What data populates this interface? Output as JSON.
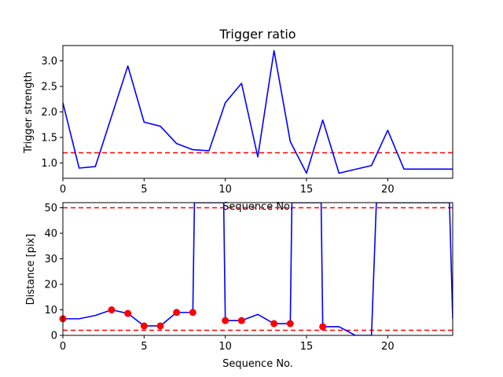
{
  "chart_data": [
    {
      "type": "line",
      "title": "Trigger ratio",
      "xlabel": "Sequence No.",
      "ylabel": "Trigger strength",
      "xlim": [
        0,
        24
      ],
      "ylim": [
        0.7,
        3.3
      ],
      "xticks": [
        0,
        5,
        10,
        15,
        20
      ],
      "yticks": [
        1.0,
        1.5,
        2.0,
        2.5,
        3.0
      ],
      "grid": false,
      "series": [
        {
          "style": "line",
          "color": "#0000ff",
          "x": [
            0,
            1,
            2,
            4,
            5,
            6,
            7,
            8,
            9,
            10,
            11,
            12,
            13,
            14,
            15,
            16,
            17,
            19,
            20,
            21,
            24
          ],
          "y": [
            2.18,
            0.9,
            0.93,
            2.9,
            1.8,
            1.72,
            1.38,
            1.26,
            1.24,
            2.18,
            2.56,
            1.12,
            3.2,
            1.42,
            0.8,
            1.84,
            0.8,
            0.95,
            1.64,
            0.88,
            0.88
          ]
        }
      ],
      "hlines": [
        {
          "y": 1.2,
          "color": "#ff0000",
          "style": "dashed"
        }
      ]
    },
    {
      "type": "line",
      "title": "",
      "xlabel": "Sequence No.",
      "ylabel": "Distance [pix]",
      "xlim": [
        0,
        24
      ],
      "ylim": [
        0,
        52
      ],
      "xticks": [
        0,
        5,
        10,
        15,
        20
      ],
      "yticks": [
        0,
        10,
        20,
        30,
        40,
        50
      ],
      "grid": false,
      "series": [
        {
          "style": "line",
          "color": "#0000ff",
          "x": [
            0,
            1,
            2,
            3,
            4,
            5,
            6,
            7,
            8,
            8.1,
            9.9,
            10,
            11,
            12,
            13,
            14,
            14.1,
            15.9,
            16,
            17,
            18,
            19,
            19.3,
            23.8,
            24
          ],
          "y": [
            6.5,
            6.5,
            7.8,
            10,
            8.6,
            3.7,
            3.7,
            9,
            9,
            52,
            52,
            5.8,
            5.8,
            8.2,
            4.6,
            4.6,
            52,
            52,
            3.4,
            3.4,
            0,
            0,
            52,
            52,
            6.5
          ]
        },
        {
          "style": "markers",
          "color": "#ff0000",
          "x": [
            0,
            3,
            4,
            5,
            6,
            7,
            8,
            10,
            11,
            13,
            14,
            16
          ],
          "y": [
            6.5,
            10,
            8.6,
            3.7,
            3.7,
            9,
            9,
            5.8,
            5.8,
            4.6,
            4.6,
            3.4
          ]
        }
      ],
      "hlines": [
        {
          "y": 50,
          "color": "#ff0000",
          "style": "dashed"
        },
        {
          "y": 2,
          "color": "#ff0000",
          "style": "dashed"
        }
      ]
    }
  ]
}
